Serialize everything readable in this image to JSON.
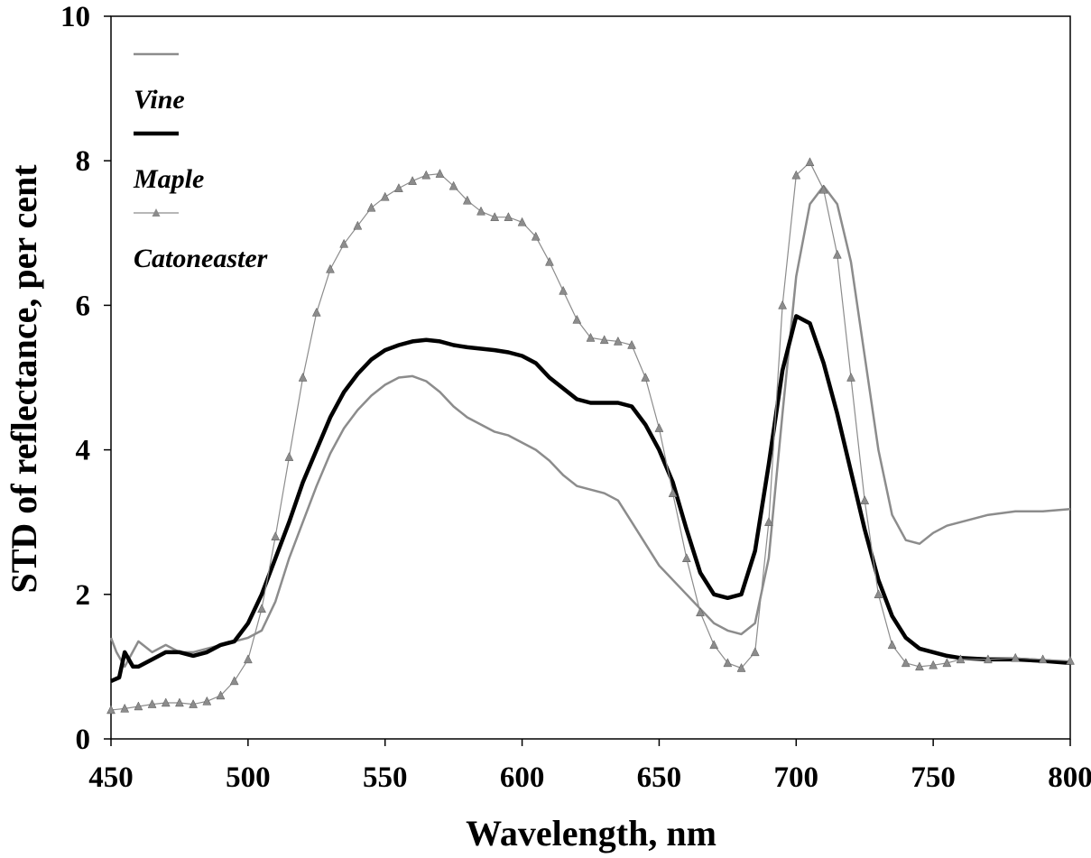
{
  "chart_data": {
    "type": "line",
    "title": "",
    "xlabel": "Wavelength, nm",
    "ylabel": "STD of reflectance, per cent",
    "xlim": [
      450,
      800
    ],
    "ylim": [
      0,
      10
    ],
    "xticks": [
      450,
      500,
      550,
      600,
      650,
      700,
      750,
      800
    ],
    "yticks": [
      0,
      2,
      4,
      6,
      8,
      10
    ],
    "grid": false,
    "legend": {
      "placement": "top-left",
      "entries": [
        "Vine",
        "Maple",
        "Catoneaster"
      ]
    },
    "series": [
      {
        "name": "Vine",
        "color": "#8c8c8c",
        "marker": "none",
        "x": [
          450,
          452,
          455,
          460,
          465,
          470,
          475,
          480,
          485,
          490,
          495,
          500,
          505,
          510,
          515,
          520,
          525,
          530,
          535,
          540,
          545,
          550,
          555,
          560,
          565,
          570,
          575,
          580,
          585,
          590,
          595,
          600,
          605,
          610,
          615,
          620,
          625,
          630,
          635,
          640,
          645,
          650,
          655,
          660,
          665,
          670,
          675,
          680,
          685,
          690,
          695,
          700,
          705,
          710,
          715,
          720,
          725,
          730,
          735,
          740,
          745,
          750,
          755,
          760,
          770,
          780,
          790,
          800
        ],
        "values": [
          1.4,
          1.2,
          1.0,
          1.35,
          1.2,
          1.3,
          1.2,
          1.2,
          1.25,
          1.3,
          1.35,
          1.4,
          1.5,
          1.9,
          2.5,
          3.0,
          3.5,
          3.95,
          4.3,
          4.55,
          4.75,
          4.9,
          5.0,
          5.02,
          4.95,
          4.8,
          4.6,
          4.45,
          4.35,
          4.25,
          4.2,
          4.1,
          4.0,
          3.85,
          3.65,
          3.5,
          3.45,
          3.4,
          3.3,
          3.0,
          2.7,
          2.4,
          2.2,
          2.0,
          1.8,
          1.6,
          1.5,
          1.45,
          1.6,
          2.5,
          4.5,
          6.4,
          7.4,
          7.65,
          7.4,
          6.6,
          5.3,
          4.0,
          3.1,
          2.75,
          2.7,
          2.85,
          2.95,
          3.0,
          3.1,
          3.15,
          3.15,
          3.18
        ]
      },
      {
        "name": "Maple",
        "color": "#000000",
        "marker": "none",
        "x": [
          450,
          453,
          455,
          458,
          460,
          465,
          470,
          475,
          480,
          485,
          490,
          495,
          500,
          505,
          510,
          515,
          520,
          525,
          530,
          535,
          540,
          545,
          550,
          555,
          560,
          565,
          570,
          575,
          580,
          585,
          590,
          595,
          600,
          605,
          610,
          615,
          620,
          625,
          630,
          635,
          640,
          645,
          650,
          655,
          660,
          665,
          670,
          675,
          680,
          685,
          690,
          695,
          700,
          705,
          710,
          715,
          720,
          725,
          730,
          735,
          740,
          745,
          750,
          755,
          760,
          770,
          780,
          790,
          800
        ],
        "values": [
          0.8,
          0.85,
          1.2,
          1.0,
          1.0,
          1.1,
          1.2,
          1.2,
          1.15,
          1.2,
          1.3,
          1.35,
          1.6,
          2.0,
          2.5,
          3.0,
          3.55,
          4.0,
          4.45,
          4.8,
          5.05,
          5.25,
          5.38,
          5.45,
          5.5,
          5.52,
          5.5,
          5.45,
          5.42,
          5.4,
          5.38,
          5.35,
          5.3,
          5.2,
          5.0,
          4.85,
          4.7,
          4.65,
          4.65,
          4.65,
          4.6,
          4.35,
          4.0,
          3.55,
          2.9,
          2.3,
          2.0,
          1.95,
          2.0,
          2.6,
          3.8,
          5.1,
          5.85,
          5.75,
          5.2,
          4.5,
          3.7,
          2.9,
          2.2,
          1.7,
          1.4,
          1.25,
          1.2,
          1.15,
          1.12,
          1.1,
          1.1,
          1.08,
          1.05
        ]
      },
      {
        "name": "Catoneaster",
        "color": "#8c8c8c",
        "marker": "triangle",
        "x": [
          450,
          455,
          460,
          465,
          470,
          475,
          480,
          485,
          490,
          495,
          500,
          505,
          510,
          515,
          520,
          525,
          530,
          535,
          540,
          545,
          550,
          555,
          560,
          565,
          570,
          575,
          580,
          585,
          590,
          595,
          600,
          605,
          610,
          615,
          620,
          625,
          630,
          635,
          640,
          645,
          650,
          655,
          660,
          665,
          670,
          675,
          680,
          685,
          690,
          695,
          700,
          705,
          710,
          715,
          720,
          725,
          730,
          735,
          740,
          745,
          750,
          755,
          760,
          770,
          780,
          790,
          800
        ],
        "values": [
          0.4,
          0.42,
          0.45,
          0.48,
          0.5,
          0.5,
          0.48,
          0.52,
          0.6,
          0.8,
          1.1,
          1.8,
          2.8,
          3.9,
          5.0,
          5.9,
          6.5,
          6.85,
          7.1,
          7.35,
          7.5,
          7.62,
          7.72,
          7.8,
          7.82,
          7.65,
          7.45,
          7.3,
          7.22,
          7.22,
          7.15,
          6.95,
          6.6,
          6.2,
          5.8,
          5.55,
          5.52,
          5.5,
          5.45,
          5.0,
          4.3,
          3.4,
          2.5,
          1.75,
          1.3,
          1.05,
          0.98,
          1.2,
          3.0,
          6.0,
          7.8,
          7.98,
          7.6,
          6.7,
          5.0,
          3.3,
          2.0,
          1.3,
          1.05,
          1.0,
          1.02,
          1.05,
          1.1,
          1.1,
          1.12,
          1.1,
          1.08
        ]
      }
    ]
  }
}
